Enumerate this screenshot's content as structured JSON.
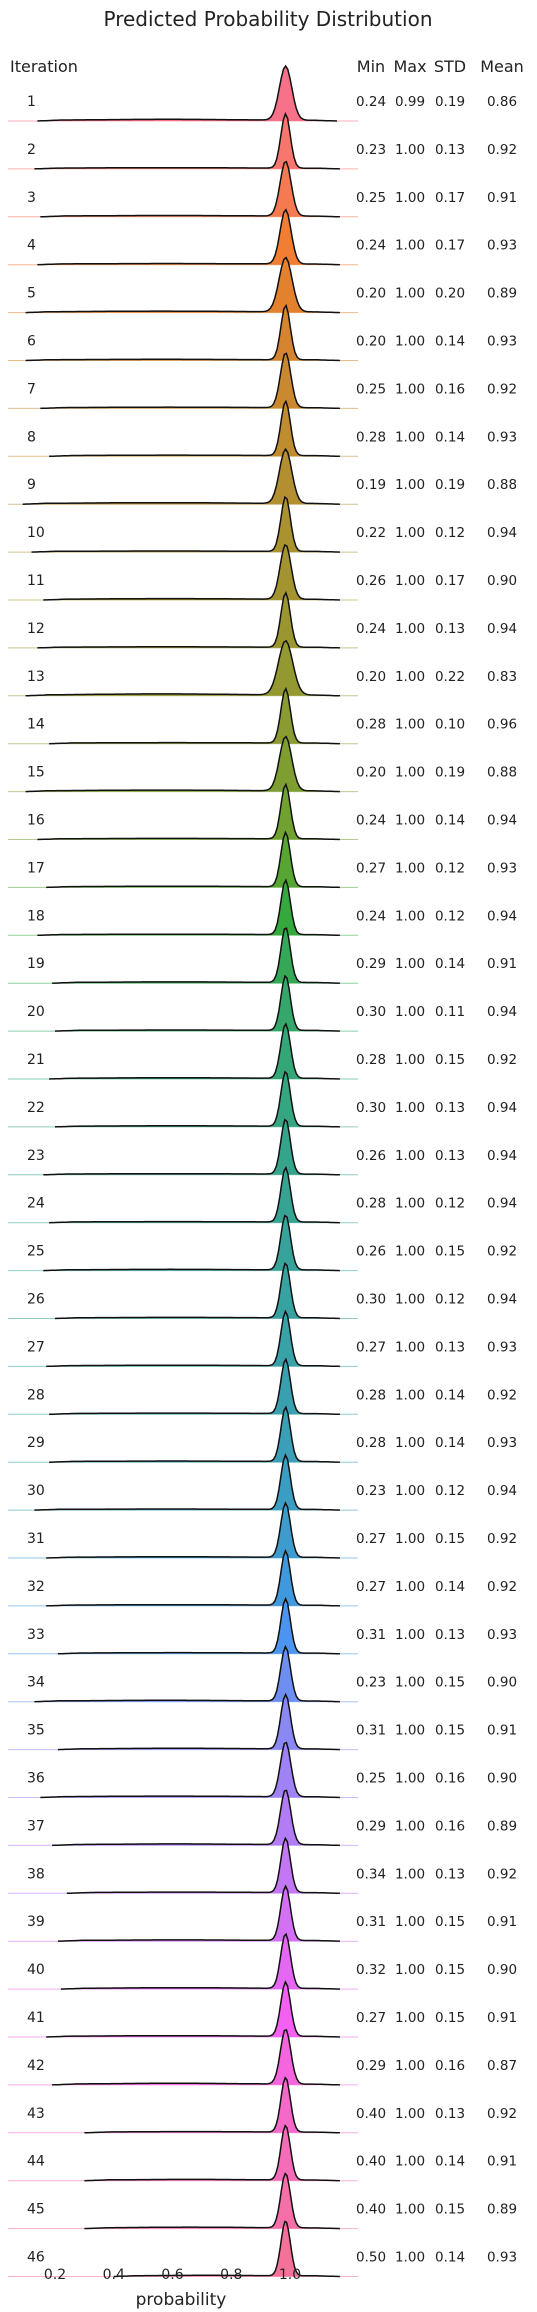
{
  "chart_data": {
    "type": "ridgeline",
    "title": "Predicted Probability Distribution",
    "xlabel": "probability",
    "row_header": "Iteration",
    "stat_headers": [
      "Min",
      "Max",
      "STD",
      "Mean"
    ],
    "xticks": [
      "0.2",
      "0.4",
      "0.6",
      "0.8",
      "1.0"
    ],
    "xtick_values": [
      0.2,
      0.4,
      0.6,
      0.8,
      1.0
    ],
    "xlim": [
      0.08,
      1.25
    ],
    "series": [
      {
        "iteration": "1",
        "min": "0.24",
        "max": "0.99",
        "std": "0.19",
        "mean": "0.86",
        "color": "#f77189"
      },
      {
        "iteration": "2",
        "min": "0.23",
        "max": "1.00",
        "std": "0.13",
        "mean": "0.92",
        "color": "#f7766d"
      },
      {
        "iteration": "3",
        "min": "0.25",
        "max": "1.00",
        "std": "0.17",
        "mean": "0.91",
        "color": "#f57a52"
      },
      {
        "iteration": "4",
        "min": "0.24",
        "max": "1.00",
        "std": "0.17",
        "mean": "0.93",
        "color": "#f17e33"
      },
      {
        "iteration": "5",
        "min": "0.20",
        "max": "1.00",
        "std": "0.20",
        "mean": "0.89",
        "color": "#e2812e"
      },
      {
        "iteration": "6",
        "min": "0.20",
        "max": "1.00",
        "std": "0.14",
        "mean": "0.93",
        "color": "#d5852f"
      },
      {
        "iteration": "7",
        "min": "0.25",
        "max": "1.00",
        "std": "0.16",
        "mean": "0.92",
        "color": "#ca8830"
      },
      {
        "iteration": "8",
        "min": "0.28",
        "max": "1.00",
        "std": "0.14",
        "mean": "0.93",
        "color": "#bf8c30"
      },
      {
        "iteration": "9",
        "min": "0.19",
        "max": "1.00",
        "std": "0.19",
        "mean": "0.88",
        "color": "#b48f31"
      },
      {
        "iteration": "10",
        "min": "0.22",
        "max": "1.00",
        "std": "0.12",
        "mean": "0.94",
        "color": "#aa9231"
      },
      {
        "iteration": "11",
        "min": "0.26",
        "max": "1.00",
        "std": "0.17",
        "mean": "0.90",
        "color": "#a39431"
      },
      {
        "iteration": "12",
        "min": "0.24",
        "max": "1.00",
        "std": "0.13",
        "mean": "0.94",
        "color": "#9c9631"
      },
      {
        "iteration": "13",
        "min": "0.20",
        "max": "1.00",
        "std": "0.22",
        "mean": "0.83",
        "color": "#949831"
      },
      {
        "iteration": "14",
        "min": "0.28",
        "max": "1.00",
        "std": "0.10",
        "mean": "0.96",
        "color": "#8b9b31"
      },
      {
        "iteration": "15",
        "min": "0.20",
        "max": "1.00",
        "std": "0.19",
        "mean": "0.88",
        "color": "#7f9e31"
      },
      {
        "iteration": "16",
        "min": "0.24",
        "max": "1.00",
        "std": "0.14",
        "mean": "0.94",
        "color": "#70a131"
      },
      {
        "iteration": "17",
        "min": "0.27",
        "max": "1.00",
        "std": "0.12",
        "mean": "0.93",
        "color": "#57a532"
      },
      {
        "iteration": "18",
        "min": "0.24",
        "max": "1.00",
        "std": "0.12",
        "mean": "0.94",
        "color": "#36a93e"
      },
      {
        "iteration": "19",
        "min": "0.29",
        "max": "1.00",
        "std": "0.14",
        "mean": "0.91",
        "color": "#34a857"
      },
      {
        "iteration": "20",
        "min": "0.30",
        "max": "1.00",
        "std": "0.11",
        "mean": "0.94",
        "color": "#35a76a"
      },
      {
        "iteration": "21",
        "min": "0.28",
        "max": "1.00",
        "std": "0.15",
        "mean": "0.92",
        "color": "#35a677"
      },
      {
        "iteration": "22",
        "min": "0.30",
        "max": "1.00",
        "std": "0.13",
        "mean": "0.94",
        "color": "#36a582"
      },
      {
        "iteration": "23",
        "min": "0.26",
        "max": "1.00",
        "std": "0.13",
        "mean": "0.94",
        "color": "#36a48b"
      },
      {
        "iteration": "24",
        "min": "0.28",
        "max": "1.00",
        "std": "0.12",
        "mean": "0.94",
        "color": "#37a393"
      },
      {
        "iteration": "25",
        "min": "0.26",
        "max": "1.00",
        "std": "0.15",
        "mean": "0.92",
        "color": "#37a39a"
      },
      {
        "iteration": "26",
        "min": "0.30",
        "max": "1.00",
        "std": "0.12",
        "mean": "0.94",
        "color": "#38a2a1"
      },
      {
        "iteration": "27",
        "min": "0.27",
        "max": "1.00",
        "std": "0.13",
        "mean": "0.93",
        "color": "#39a1a8"
      },
      {
        "iteration": "28",
        "min": "0.28",
        "max": "1.00",
        "std": "0.14",
        "mean": "0.92",
        "color": "#3aa0b0"
      },
      {
        "iteration": "29",
        "min": "0.28",
        "max": "1.00",
        "std": "0.14",
        "mean": "0.93",
        "color": "#3b9fb8"
      },
      {
        "iteration": "30",
        "min": "0.23",
        "max": "1.00",
        "std": "0.12",
        "mean": "0.94",
        "color": "#3c9dc2"
      },
      {
        "iteration": "31",
        "min": "0.27",
        "max": "1.00",
        "std": "0.15",
        "mean": "0.92",
        "color": "#3e9bce"
      },
      {
        "iteration": "32",
        "min": "0.27",
        "max": "1.00",
        "std": "0.14",
        "mean": "0.92",
        "color": "#4098dd"
      },
      {
        "iteration": "33",
        "min": "0.31",
        "max": "1.00",
        "std": "0.13",
        "mean": "0.93",
        "color": "#4b94f0"
      },
      {
        "iteration": "34",
        "min": "0.23",
        "max": "1.00",
        "std": "0.15",
        "mean": "0.90",
        "color": "#6e8ef2"
      },
      {
        "iteration": "35",
        "min": "0.31",
        "max": "1.00",
        "std": "0.15",
        "mean": "0.91",
        "color": "#8a88f3"
      },
      {
        "iteration": "36",
        "min": "0.25",
        "max": "1.00",
        "std": "0.16",
        "mean": "0.90",
        "color": "#9f83f4"
      },
      {
        "iteration": "37",
        "min": "0.29",
        "max": "1.00",
        "std": "0.16",
        "mean": "0.89",
        "color": "#b27df4"
      },
      {
        "iteration": "38",
        "min": "0.34",
        "max": "1.00",
        "std": "0.13",
        "mean": "0.92",
        "color": "#c377f4"
      },
      {
        "iteration": "39",
        "min": "0.31",
        "max": "1.00",
        "std": "0.15",
        "mean": "0.91",
        "color": "#d470f4"
      },
      {
        "iteration": "40",
        "min": "0.32",
        "max": "1.00",
        "std": "0.15",
        "mean": "0.90",
        "color": "#e468f4"
      },
      {
        "iteration": "41",
        "min": "0.27",
        "max": "1.00",
        "std": "0.15",
        "mean": "0.91",
        "color": "#f461f2"
      },
      {
        "iteration": "42",
        "min": "0.29",
        "max": "1.00",
        "std": "0.16",
        "mean": "0.87",
        "color": "#f565dd"
      },
      {
        "iteration": "43",
        "min": "0.40",
        "max": "1.00",
        "std": "0.13",
        "mean": "0.92",
        "color": "#f569c9"
      },
      {
        "iteration": "44",
        "min": "0.40",
        "max": "1.00",
        "std": "0.14",
        "mean": "0.91",
        "color": "#f56db8"
      },
      {
        "iteration": "45",
        "min": "0.40",
        "max": "1.00",
        "std": "0.15",
        "mean": "0.89",
        "color": "#f56fa8"
      },
      {
        "iteration": "46",
        "min": "0.50",
        "max": "1.00",
        "std": "0.14",
        "mean": "0.93",
        "color": "#f5719a"
      }
    ]
  }
}
